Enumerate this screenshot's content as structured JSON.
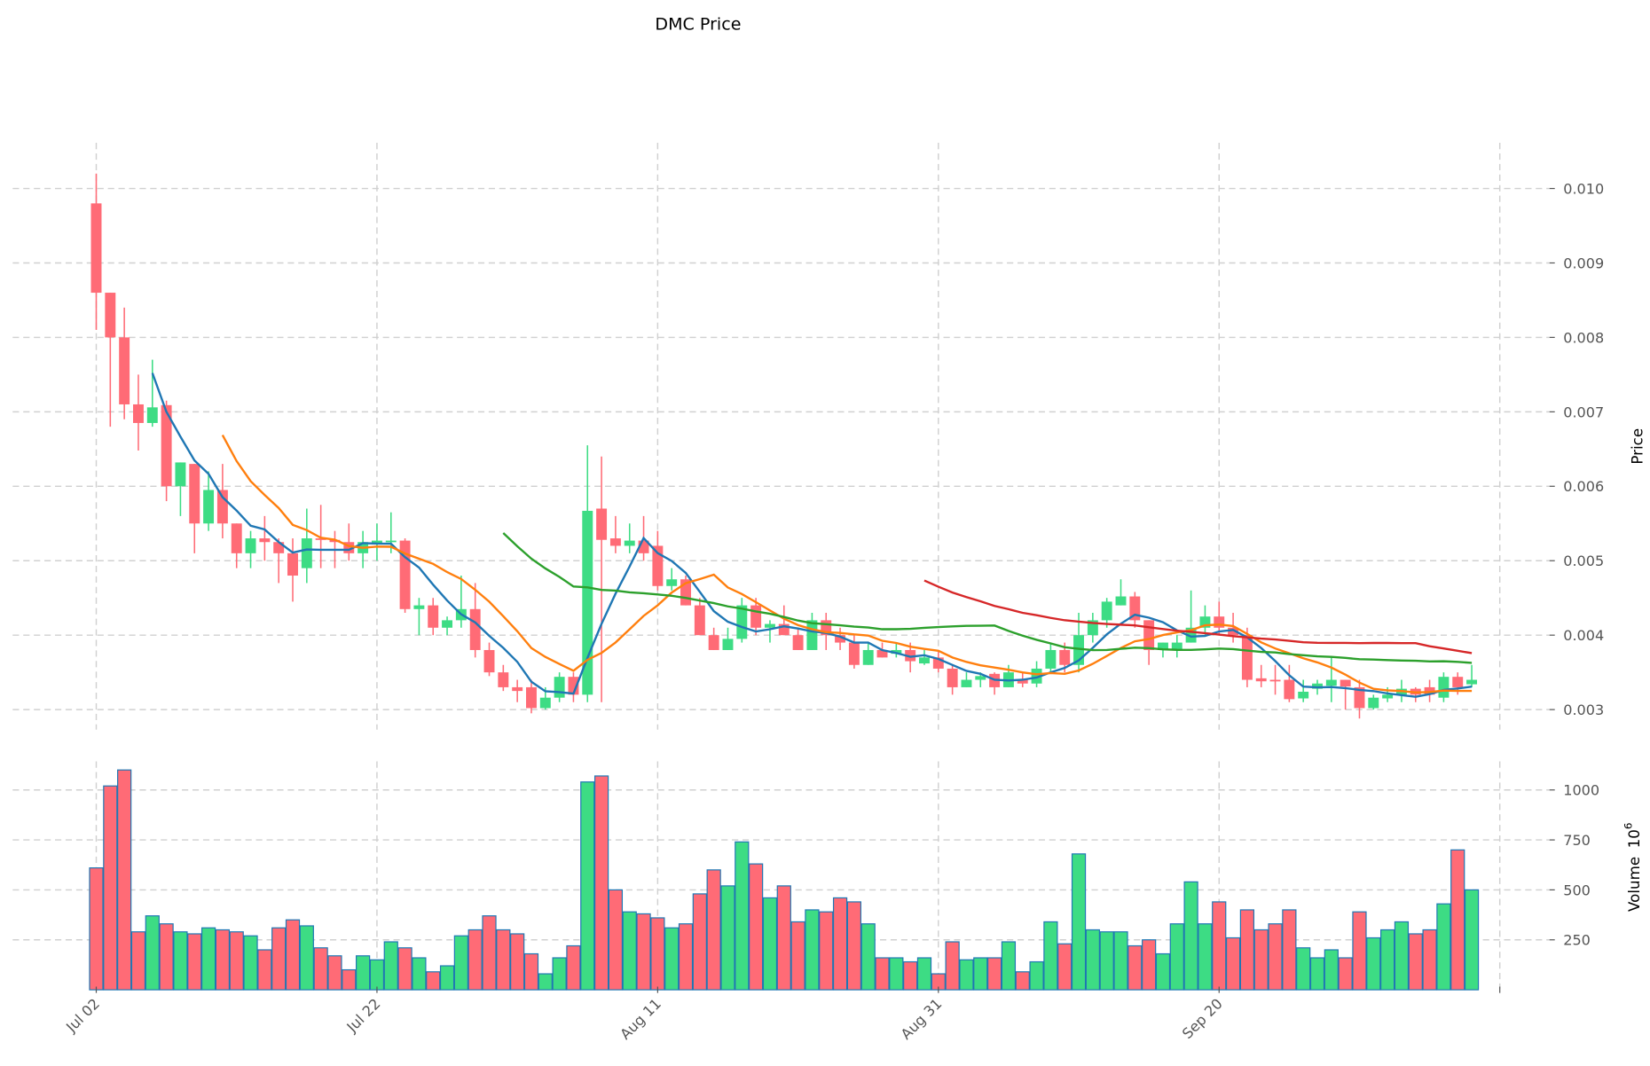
{
  "chart_data": {
    "type": "candlestick",
    "title": "DMC Price",
    "price_panel": {
      "ylabel": "Price",
      "ylim": [
        0.00265,
        0.0106
      ],
      "yticks": [
        0.003,
        0.004,
        0.005,
        0.006,
        0.007,
        0.008,
        0.009,
        0.01
      ],
      "ytick_labels": [
        "0.003",
        "0.004",
        "0.005",
        "0.006",
        "0.007",
        "0.008",
        "0.009",
        "0.010"
      ],
      "grid": true
    },
    "volume_panel": {
      "ylabel": "Volume",
      "ylabel_exponent": "10",
      "ylabel_exponent_power": "6",
      "ylim": [
        0,
        1180
      ],
      "yticks": [
        250,
        500,
        750,
        1000
      ],
      "ytick_labels": [
        "250",
        "500",
        "750",
        "1000"
      ],
      "grid": true
    },
    "x": {
      "first_day_label": "Jul 02",
      "tick_day_index": [
        0,
        20,
        40,
        60,
        80,
        100
      ],
      "tick_labels": [
        "Jul 02",
        "Jul 22",
        "Aug 11",
        "Aug 31",
        "Sep 20",
        ""
      ],
      "num_days": 99
    },
    "moving_averages": [
      {
        "period": 5,
        "color": "#1f77b4"
      },
      {
        "period": 10,
        "color": "#ff7f0e"
      },
      {
        "period": 30,
        "color": "#2ca02c"
      },
      {
        "period": 60,
        "color": "#d62728"
      }
    ],
    "colors": {
      "up": "#3ddc84",
      "down": "#ff6b76",
      "volume_edge": "#1f77b4"
    },
    "ohlc_fields": [
      "open",
      "high",
      "low",
      "close"
    ],
    "ohlc": [
      [
        0.0098,
        0.0102,
        0.0081,
        0.0086
      ],
      [
        0.0086,
        0.0086,
        0.0068,
        0.008
      ],
      [
        0.008,
        0.0084,
        0.0069,
        0.0071
      ],
      [
        0.0071,
        0.0075,
        0.00648,
        0.00685
      ],
      [
        0.00685,
        0.0077,
        0.0068,
        0.00706
      ],
      [
        0.00709,
        0.00715,
        0.0058,
        0.006
      ],
      [
        0.006,
        0.00632,
        0.0056,
        0.00632
      ],
      [
        0.0063,
        0.0063,
        0.0051,
        0.0055
      ],
      [
        0.0055,
        0.0062,
        0.0054,
        0.00595
      ],
      [
        0.00595,
        0.0063,
        0.0053,
        0.0055
      ],
      [
        0.0055,
        0.0055,
        0.0049,
        0.0051
      ],
      [
        0.0051,
        0.0054,
        0.0049,
        0.0053
      ],
      [
        0.0053,
        0.0056,
        0.005,
        0.00525
      ],
      [
        0.00525,
        0.0053,
        0.0047,
        0.0051
      ],
      [
        0.0051,
        0.0053,
        0.00445,
        0.0048
      ],
      [
        0.0049,
        0.0057,
        0.0047,
        0.0053
      ],
      [
        0.0053,
        0.00575,
        0.0049,
        0.00528
      ],
      [
        0.00528,
        0.0054,
        0.0049,
        0.00525
      ],
      [
        0.00525,
        0.0055,
        0.005,
        0.0051
      ],
      [
        0.0051,
        0.0054,
        0.0049,
        0.00525
      ],
      [
        0.00522,
        0.0055,
        0.005,
        0.00527
      ],
      [
        0.00525,
        0.00565,
        0.0051,
        0.00527
      ],
      [
        0.00527,
        0.0053,
        0.0043,
        0.00435
      ],
      [
        0.00435,
        0.0045,
        0.004,
        0.0044
      ],
      [
        0.0044,
        0.0045,
        0.004,
        0.0041
      ],
      [
        0.0041,
        0.00425,
        0.004,
        0.0042
      ],
      [
        0.0042,
        0.0048,
        0.0041,
        0.00435
      ],
      [
        0.00435,
        0.0047,
        0.0037,
        0.0038
      ],
      [
        0.0038,
        0.0039,
        0.00345,
        0.0035
      ],
      [
        0.0035,
        0.0036,
        0.00325,
        0.0033
      ],
      [
        0.0033,
        0.0034,
        0.0031,
        0.00325
      ],
      [
        0.0033,
        0.0034,
        0.00295,
        0.00302
      ],
      [
        0.00302,
        0.0033,
        0.003,
        0.00316
      ],
      [
        0.00316,
        0.0035,
        0.0031,
        0.00344
      ],
      [
        0.00344,
        0.0035,
        0.0031,
        0.0032
      ],
      [
        0.0032,
        0.00655,
        0.0031,
        0.00567
      ],
      [
        0.0057,
        0.0064,
        0.0031,
        0.00528
      ],
      [
        0.0053,
        0.0056,
        0.0051,
        0.0052
      ],
      [
        0.0052,
        0.0055,
        0.0051,
        0.00527
      ],
      [
        0.00527,
        0.0056,
        0.005,
        0.0051
      ],
      [
        0.0052,
        0.0054,
        0.0046,
        0.00466
      ],
      [
        0.00466,
        0.0049,
        0.0046,
        0.00475
      ],
      [
        0.00475,
        0.0048,
        0.0044,
        0.0044
      ],
      [
        0.0044,
        0.0045,
        0.004,
        0.004
      ],
      [
        0.004,
        0.0041,
        0.0038,
        0.0038
      ],
      [
        0.0038,
        0.0041,
        0.0038,
        0.00395
      ],
      [
        0.00395,
        0.0045,
        0.0039,
        0.0044
      ],
      [
        0.0044,
        0.0045,
        0.004,
        0.0041
      ],
      [
        0.0041,
        0.0042,
        0.0039,
        0.00415
      ],
      [
        0.00415,
        0.0044,
        0.004,
        0.004
      ],
      [
        0.004,
        0.0041,
        0.0038,
        0.0038
      ],
      [
        0.0038,
        0.0043,
        0.0038,
        0.0042
      ],
      [
        0.0042,
        0.0043,
        0.0038,
        0.004
      ],
      [
        0.004,
        0.0041,
        0.0038,
        0.0039
      ],
      [
        0.0039,
        0.004,
        0.00355,
        0.0036
      ],
      [
        0.0036,
        0.0039,
        0.0036,
        0.0038
      ],
      [
        0.0038,
        0.0039,
        0.0037,
        0.0037
      ],
      [
        0.00375,
        0.0039,
        0.0037,
        0.0038
      ],
      [
        0.0038,
        0.0039,
        0.0035,
        0.00365
      ],
      [
        0.00362,
        0.0038,
        0.0036,
        0.0037
      ],
      [
        0.0037,
        0.0038,
        0.0035,
        0.00355
      ],
      [
        0.00355,
        0.0036,
        0.0032,
        0.0033
      ],
      [
        0.0033,
        0.0035,
        0.0033,
        0.0034
      ],
      [
        0.0034,
        0.0035,
        0.0033,
        0.00345
      ],
      [
        0.00348,
        0.0035,
        0.0032,
        0.0033
      ],
      [
        0.0033,
        0.0036,
        0.0033,
        0.0035
      ],
      [
        0.0034,
        0.0035,
        0.0033,
        0.00335
      ],
      [
        0.00335,
        0.00365,
        0.0033,
        0.00355
      ],
      [
        0.00355,
        0.0039,
        0.0035,
        0.0038
      ],
      [
        0.0038,
        0.0039,
        0.0035,
        0.0036
      ],
      [
        0.0036,
        0.0043,
        0.0035,
        0.004
      ],
      [
        0.004,
        0.0043,
        0.0039,
        0.0042
      ],
      [
        0.0042,
        0.0045,
        0.0041,
        0.00445
      ],
      [
        0.0044,
        0.00475,
        0.0044,
        0.00452
      ],
      [
        0.00452,
        0.00458,
        0.0041,
        0.0042
      ],
      [
        0.0042,
        0.0042,
        0.0036,
        0.0038
      ],
      [
        0.0038,
        0.0039,
        0.0037,
        0.0039
      ],
      [
        0.0038,
        0.004,
        0.0037,
        0.0039
      ],
      [
        0.0039,
        0.0046,
        0.0039,
        0.0041
      ],
      [
        0.0041,
        0.0044,
        0.004,
        0.00425
      ],
      [
        0.00425,
        0.00445,
        0.004,
        0.0041
      ],
      [
        0.0041,
        0.0043,
        0.0039,
        0.004
      ],
      [
        0.004,
        0.0041,
        0.0033,
        0.0034
      ],
      [
        0.00342,
        0.0036,
        0.0033,
        0.00338
      ],
      [
        0.0034,
        0.0036,
        0.0032,
        0.00338
      ],
      [
        0.0034,
        0.0036,
        0.0031,
        0.00314
      ],
      [
        0.00315,
        0.0034,
        0.0031,
        0.00324
      ],
      [
        0.00328,
        0.0034,
        0.0032,
        0.00335
      ],
      [
        0.00332,
        0.0037,
        0.0031,
        0.0034
      ],
      [
        0.0034,
        0.0034,
        0.003,
        0.00331
      ],
      [
        0.0033,
        0.0034,
        0.00288,
        0.00302
      ],
      [
        0.00302,
        0.0032,
        0.003,
        0.00316
      ],
      [
        0.00315,
        0.0033,
        0.0031,
        0.0032
      ],
      [
        0.0032,
        0.0034,
        0.0031,
        0.00328
      ],
      [
        0.00328,
        0.0033,
        0.0031,
        0.0032
      ],
      [
        0.0033,
        0.0034,
        0.0031,
        0.0032
      ],
      [
        0.00316,
        0.0035,
        0.0031,
        0.00344
      ],
      [
        0.00344,
        0.0035,
        0.0032,
        0.0033
      ],
      [
        0.00334,
        0.0036,
        0.0033,
        0.0034
      ]
    ],
    "volume": [
      610,
      1020,
      1100,
      290,
      370,
      330,
      290,
      280,
      310,
      300,
      290,
      270,
      200,
      310,
      350,
      320,
      210,
      170,
      100,
      170,
      150,
      240,
      210,
      160,
      90,
      120,
      270,
      300,
      370,
      300,
      280,
      180,
      80,
      160,
      220,
      1040,
      1070,
      500,
      390,
      380,
      360,
      310,
      330,
      480,
      600,
      520,
      740,
      630,
      460,
      520,
      340,
      400,
      390,
      460,
      440,
      330,
      160,
      160,
      140,
      160,
      80,
      240,
      150,
      160,
      160,
      240,
      90,
      140,
      340,
      230,
      680,
      300,
      290,
      290,
      220,
      250,
      180,
      330,
      540,
      330,
      440,
      260,
      400,
      300,
      330,
      400,
      210,
      160,
      200,
      160,
      390,
      260,
      300,
      340,
      280,
      300,
      430,
      700,
      500
    ]
  }
}
